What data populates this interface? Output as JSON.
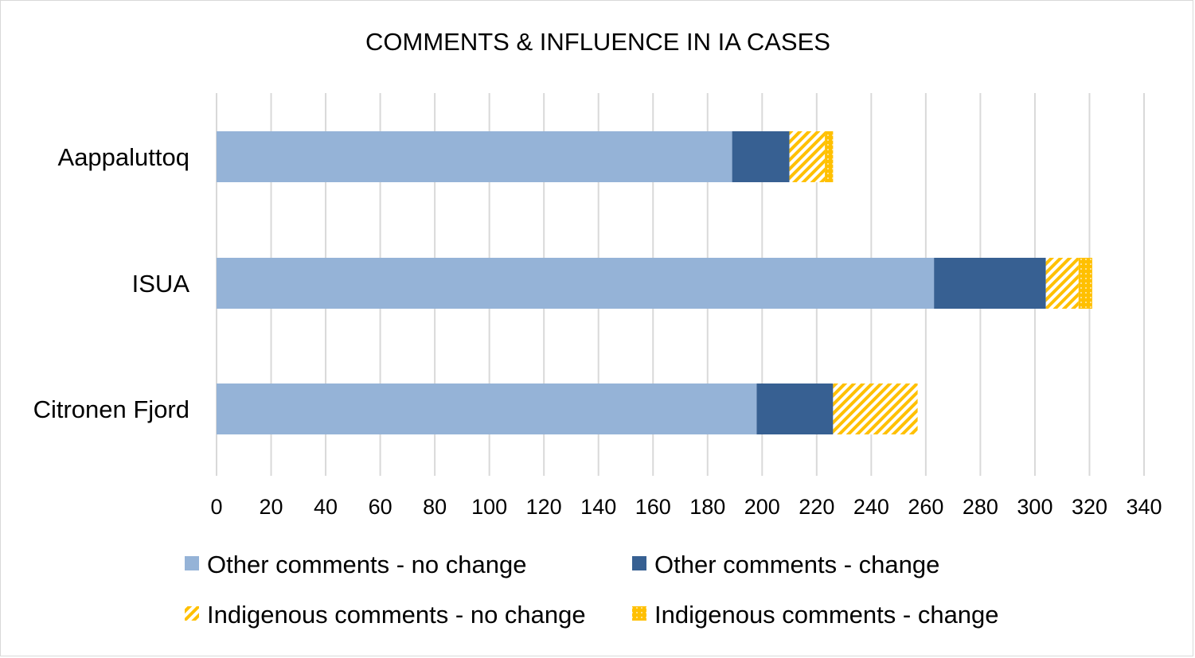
{
  "chart_data": {
    "type": "bar",
    "orientation": "horizontal",
    "stacked": true,
    "title": "COMMENTS & INFLUENCE IN IA CASES",
    "xlabel": "",
    "ylabel": "",
    "categories": [
      "Aappaluttoq",
      "ISUA",
      "Citronen Fjord"
    ],
    "series": [
      {
        "name": "Other comments - no change",
        "values": [
          189,
          263,
          198
        ],
        "color": "#95b3d7",
        "pattern": "solid"
      },
      {
        "name": "Other comments - change",
        "values": [
          21,
          41,
          28
        ],
        "color": "#376092",
        "pattern": "solid"
      },
      {
        "name": "Indigenous comments - no change",
        "values": [
          13,
          12,
          31
        ],
        "color": "#ffc000",
        "pattern": "diagonal-hatch"
      },
      {
        "name": "Indigenous comments - change",
        "values": [
          3,
          5,
          0
        ],
        "color": "#ffc000",
        "pattern": "dotted-solid"
      }
    ],
    "xlim": [
      0,
      340
    ],
    "xticks": [
      "0",
      "20",
      "40",
      "60",
      "80",
      "100",
      "120",
      "140",
      "160",
      "180",
      "200",
      "220",
      "240",
      "260",
      "280",
      "300",
      "320",
      "340"
    ],
    "grid": true,
    "legend_position": "bottom"
  }
}
